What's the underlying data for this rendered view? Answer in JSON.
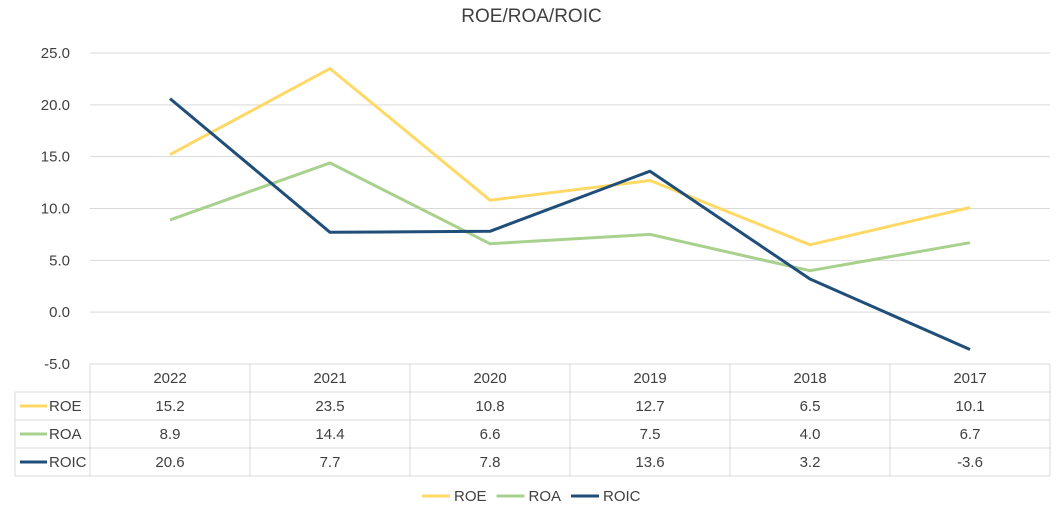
{
  "chart_data": {
    "type": "line",
    "title": "ROE/ROA/ROIC",
    "categories": [
      "2022",
      "2021",
      "2020",
      "2019",
      "2018",
      "2017"
    ],
    "series": [
      {
        "name": "ROE",
        "color": "#FFD966",
        "values": [
          15.2,
          23.5,
          10.8,
          12.7,
          6.5,
          10.1
        ],
        "labels": [
          "15.2",
          "23.5",
          "10.8",
          "12.7",
          "6.5",
          "10.1"
        ]
      },
      {
        "name": "ROA",
        "color": "#A9D18E",
        "values": [
          8.9,
          14.4,
          6.6,
          7.5,
          4.0,
          6.7
        ],
        "labels": [
          "8.9",
          "14.4",
          "6.6",
          "7.5",
          "4.0",
          "6.7"
        ]
      },
      {
        "name": "ROIC",
        "color": "#1F4E79",
        "values": [
          20.6,
          7.7,
          7.8,
          13.6,
          3.2,
          -3.6
        ],
        "labels": [
          "20.6",
          "7.7",
          "7.8",
          "13.6",
          "3.2",
          "-3.6"
        ]
      }
    ],
    "ylim": [
      -5,
      25
    ],
    "yticks": [
      "25.0",
      "20.0",
      "15.0",
      "10.0",
      "5.0",
      "0.0",
      "-5.0"
    ],
    "grid": true,
    "data_table": true,
    "legend_position": "bottom",
    "gridline_color": "#D9D9D9"
  }
}
